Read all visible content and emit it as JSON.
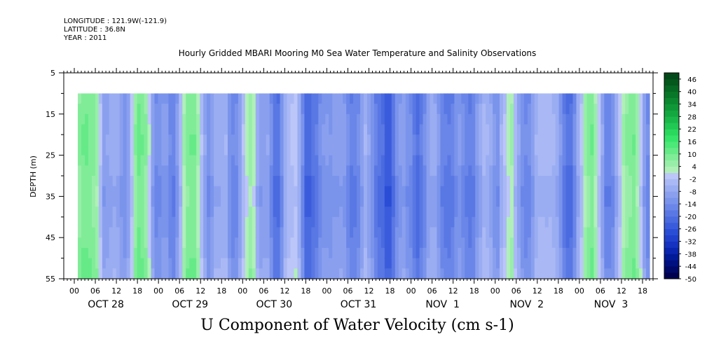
{
  "header": {
    "longitude": "LONGITUDE : 121.9W(-121.9)",
    "latitude": "LATITUDE : 36.8N",
    "year": "YEAR : 2011"
  },
  "chart_data": {
    "type": "heatmap",
    "title": "Hourly Gridded MBARI Mooring M0 Sea Water Temperature and Salinity Observations",
    "xlabel": "U Component of Water Velocity (cm s-1)",
    "ylabel": "DEPTH (m)",
    "ylim": [
      5,
      55
    ],
    "y_inverted": true,
    "y_ticks": [
      5,
      15,
      25,
      35,
      45,
      55
    ],
    "data_depth_range": [
      10,
      55
    ],
    "hour_ticks": [
      "00",
      "06",
      "12",
      "18",
      "00",
      "06",
      "12",
      "18",
      "00",
      "06",
      "12",
      "18",
      "00",
      "06",
      "12",
      "18",
      "00",
      "06",
      "12",
      "18",
      "00",
      "06",
      "12",
      "18",
      "00",
      "06",
      "12",
      "18"
    ],
    "day_labels": [
      "OCT 28",
      "OCT 29",
      "OCT 30",
      "OCT 31",
      "NOV  1",
      "NOV  2",
      "NOV  3"
    ],
    "x_range_hours": [
      -3,
      165
    ],
    "data_start_hour": 1,
    "data_end_hour": 164,
    "colorbar": {
      "labels": [
        "46",
        "40",
        "34",
        "28",
        "22",
        "16",
        "10",
        "4",
        "-2",
        "-8",
        "-14",
        "-20",
        "-26",
        "-32",
        "-38",
        "-44",
        "-50"
      ],
      "levels": [
        -50,
        -47,
        -44,
        -41,
        -38,
        -35,
        -32,
        -29,
        -26,
        -23,
        -20,
        -17,
        -14,
        -11,
        -8,
        -5,
        -2,
        1,
        4,
        7,
        10,
        13,
        16,
        19,
        22,
        25,
        28,
        31,
        34,
        37,
        40,
        43,
        46,
        49
      ],
      "colors": [
        "#000050",
        "#000868",
        "#001080",
        "#001a98",
        "#0a26b0",
        "#1533c0",
        "#2040cc",
        "#2a4dd6",
        "#3a5cdc",
        "#4a6ae0",
        "#5a78e4",
        "#6a86e8",
        "#7a94ec",
        "#8aa0ef",
        "#9aadf2",
        "#aab9f5",
        "#bcc6f8",
        "#b0f0b8",
        "#98eea8",
        "#80ec98",
        "#66ea88",
        "#4ce878",
        "#36e46a",
        "#2ad85e",
        "#22c854",
        "#1ab84a",
        "#14a840",
        "#109838",
        "#0c8830",
        "#087828",
        "#066822",
        "#04581c",
        "#034818"
      ]
    },
    "column_means": [
      6.5,
      8.6,
      8.8,
      8.1,
      6.8,
      4.5,
      -2.5,
      -10.5,
      -9.8,
      -8.2,
      -7.4,
      -8.2,
      -11,
      -13,
      -10,
      -1.8,
      5.6,
      9.6,
      8.3,
      5.9,
      -0.6,
      -10.4,
      -14.6,
      -14,
      -11.5,
      -11.7,
      -15.8,
      -17.1,
      -11.9,
      -4.7,
      3,
      7.4,
      8.2,
      8.2,
      2.8,
      -3.8,
      -9.7,
      -13.8,
      -11.1,
      -7.2,
      -7.7,
      -7.1,
      -6.8,
      -12.9,
      -15.8,
      -14.8,
      -10,
      -3.6,
      1.2,
      4.4,
      1.4,
      -7.2,
      -10.3,
      -10,
      -9.8,
      -14.7,
      -20,
      -20.4,
      -14.3,
      -6.9,
      -3.9,
      -2.5,
      -1.6,
      -6.9,
      -15.3,
      -23.1,
      -23.1,
      -20.3,
      -18.5,
      -14.5,
      -12.4,
      -12,
      -12.7,
      -11.1,
      -11.1,
      -10.4,
      -11.4,
      -15.2,
      -17.9,
      -17.3,
      -15.1,
      -10.7,
      -6.5,
      -9.8,
      -13,
      -17.6,
      -20.3,
      -21.5,
      -25.5,
      -25.4,
      -20,
      -14.3,
      -11.5,
      -10.4,
      -13.3,
      -15.2,
      -18.8,
      -21.7,
      -18.4,
      -15.2,
      -9.9,
      -8.3,
      -8.4,
      -12.1,
      -16.7,
      -18.2,
      -18.6,
      -17.4,
      -14.1,
      -12.2,
      -14.5,
      -17.1,
      -18,
      -16.9,
      -11.6,
      -8.6,
      -5.4,
      -6.5,
      -8.9,
      -12.3,
      -13.3,
      -6.5,
      -3.1,
      1.2,
      3.1,
      -4.4,
      -9.5,
      -13.7,
      -15.6,
      -14.8,
      -10.8,
      -6.7,
      -4.8,
      -4.8,
      -5.3,
      -4.9,
      -6.1,
      -7.8,
      -12.4,
      -18.1,
      -21,
      -20.7,
      -15.1,
      -8.1,
      -2.8,
      3.7,
      6.7,
      8.5,
      3.6,
      -2.3,
      -9.6,
      -16.6,
      -16.3,
      -14.3,
      -8.1,
      -2.3,
      2.7,
      5.8,
      7.1,
      8.3,
      4.5,
      -1.5,
      -10.4,
      -15.6
    ],
    "depth_mods": [
      [
        10,
        0
      ],
      [
        15,
        2
      ],
      [
        20,
        3
      ],
      [
        25,
        3
      ],
      [
        30,
        0
      ],
      [
        35,
        -2
      ],
      [
        40,
        0
      ],
      [
        45,
        1
      ],
      [
        50,
        3
      ],
      [
        55,
        5
      ]
    ]
  }
}
